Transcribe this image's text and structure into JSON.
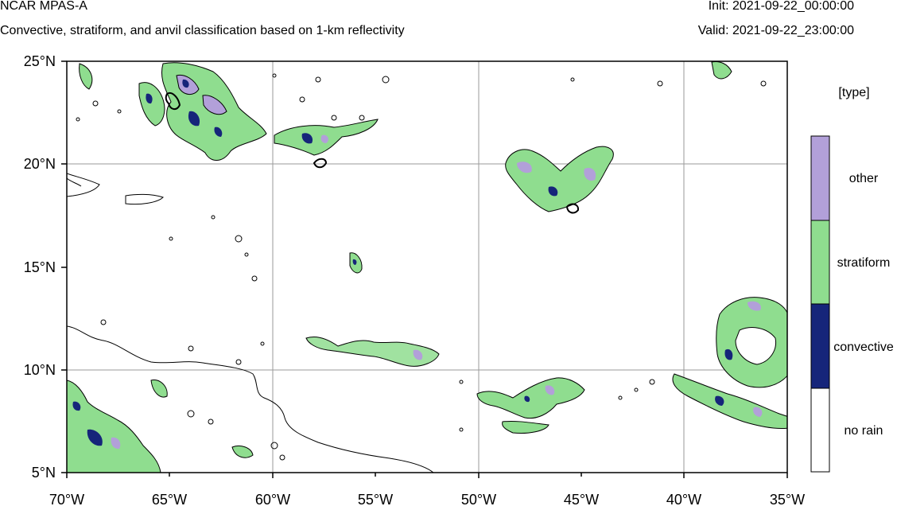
{
  "header": {
    "model": "NCAR MPAS-A",
    "description": "Convective, stratiform, and anvil classification based on 1-km reflectivity",
    "init": "Init: 2021-09-22_00:00:00",
    "valid": "Valid: 2021-09-22_23:00:00"
  },
  "map": {
    "lon_range": [
      -70,
      -35
    ],
    "lat_range": [
      5,
      25
    ],
    "lon_ticks": [
      "70°W",
      "65°W",
      "60°W",
      "55°W",
      "50°W",
      "45°W",
      "40°W",
      "35°W"
    ],
    "lat_ticks": [
      "25°N",
      "20°N",
      "15°N",
      "10°N",
      "5°N"
    ],
    "gridlines": true,
    "coastline_color": "#000000"
  },
  "legend": {
    "title": "[type]",
    "classes": [
      {
        "label": "other",
        "color": "#b2a0d9"
      },
      {
        "label": "stratiform",
        "color": "#8fdd8f"
      },
      {
        "label": "convective",
        "color": "#16257a"
      },
      {
        "label": "no rain",
        "color": "#ffffff"
      }
    ]
  }
}
